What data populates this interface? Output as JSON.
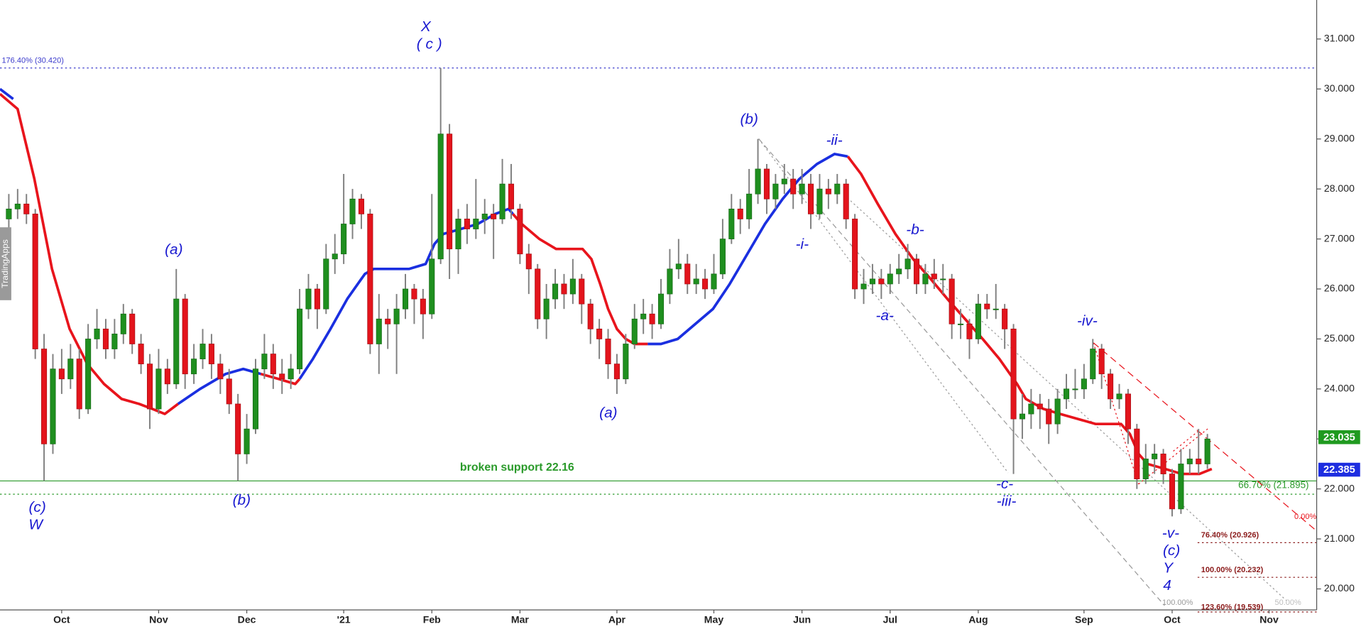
{
  "chart_data": {
    "type": "candlestick",
    "watermark": "TradingApps",
    "up_color": "#1f8f1f",
    "down_color": "#e3141c",
    "wick_color": "#808080",
    "candles": [
      [
        27.4,
        27.9,
        27.2,
        27.6
      ],
      [
        27.6,
        28.0,
        27.4,
        27.7
      ],
      [
        27.7,
        27.9,
        27.3,
        27.5
      ],
      [
        27.5,
        27.6,
        24.6,
        24.8
      ],
      [
        24.8,
        25.1,
        22.16,
        22.9
      ],
      [
        22.9,
        24.7,
        22.7,
        24.4
      ],
      [
        24.4,
        24.8,
        23.9,
        24.2
      ],
      [
        24.2,
        24.9,
        24.0,
        24.6
      ],
      [
        24.6,
        24.8,
        23.4,
        23.6
      ],
      [
        23.6,
        25.3,
        23.5,
        25.0
      ],
      [
        25.0,
        25.6,
        24.8,
        25.2
      ],
      [
        25.2,
        25.4,
        24.6,
        24.8
      ],
      [
        24.8,
        25.4,
        24.6,
        25.1
      ],
      [
        25.1,
        25.7,
        24.9,
        25.5
      ],
      [
        25.5,
        25.6,
        24.7,
        24.9
      ],
      [
        24.9,
        25.1,
        24.3,
        24.5
      ],
      [
        24.5,
        24.7,
        23.2,
        23.6
      ],
      [
        23.6,
        24.8,
        23.5,
        24.4
      ],
      [
        24.4,
        24.6,
        23.9,
        24.1
      ],
      [
        24.1,
        26.4,
        24.0,
        25.8
      ],
      [
        25.8,
        25.9,
        24.0,
        24.3
      ],
      [
        24.3,
        24.9,
        24.1,
        24.6
      ],
      [
        24.6,
        25.2,
        24.4,
        24.9
      ],
      [
        24.9,
        25.1,
        24.2,
        24.5
      ],
      [
        24.5,
        24.7,
        23.9,
        24.2
      ],
      [
        24.2,
        24.4,
        23.5,
        23.7
      ],
      [
        23.7,
        23.9,
        22.16,
        22.7
      ],
      [
        22.7,
        23.5,
        22.5,
        23.2
      ],
      [
        23.2,
        24.6,
        23.1,
        24.4
      ],
      [
        24.4,
        25.1,
        24.2,
        24.7
      ],
      [
        24.7,
        24.9,
        24.0,
        24.3
      ],
      [
        24.3,
        24.6,
        23.9,
        24.2
      ],
      [
        24.2,
        24.7,
        24.0,
        24.4
      ],
      [
        24.4,
        26.0,
        24.3,
        25.6
      ],
      [
        25.6,
        26.3,
        25.4,
        26.0
      ],
      [
        26.0,
        26.1,
        25.2,
        25.6
      ],
      [
        25.6,
        26.9,
        25.5,
        26.6
      ],
      [
        26.6,
        27.1,
        26.3,
        26.7
      ],
      [
        26.7,
        28.3,
        26.5,
        27.3
      ],
      [
        27.3,
        28.0,
        27.0,
        27.8
      ],
      [
        27.8,
        27.9,
        27.2,
        27.5
      ],
      [
        27.5,
        27.6,
        24.7,
        24.9
      ],
      [
        24.9,
        25.9,
        24.3,
        25.4
      ],
      [
        25.4,
        25.6,
        24.8,
        25.3
      ],
      [
        25.3,
        25.9,
        24.3,
        25.6
      ],
      [
        25.6,
        26.3,
        25.4,
        26.0
      ],
      [
        26.0,
        26.1,
        25.3,
        25.8
      ],
      [
        25.8,
        26.0,
        25.0,
        25.5
      ],
      [
        25.5,
        27.9,
        25.4,
        26.6
      ],
      [
        26.6,
        30.42,
        26.5,
        29.1
      ],
      [
        29.1,
        29.3,
        26.2,
        26.8
      ],
      [
        26.8,
        27.6,
        26.3,
        27.4
      ],
      [
        27.4,
        27.7,
        26.9,
        27.2
      ],
      [
        27.2,
        28.2,
        27.0,
        27.4
      ],
      [
        27.4,
        27.8,
        27.1,
        27.5
      ],
      [
        27.5,
        27.7,
        26.6,
        27.4
      ],
      [
        27.4,
        28.6,
        27.3,
        28.1
      ],
      [
        28.1,
        28.5,
        27.4,
        27.6
      ],
      [
        27.6,
        27.7,
        26.5,
        26.7
      ],
      [
        26.7,
        26.9,
        25.9,
        26.4
      ],
      [
        26.4,
        26.5,
        25.2,
        25.4
      ],
      [
        25.4,
        26.1,
        25.0,
        25.8
      ],
      [
        25.8,
        26.4,
        25.6,
        26.1
      ],
      [
        26.1,
        26.3,
        25.6,
        25.9
      ],
      [
        25.9,
        26.6,
        25.7,
        26.2
      ],
      [
        26.2,
        26.3,
        25.3,
        25.7
      ],
      [
        25.7,
        25.8,
        24.9,
        25.2
      ],
      [
        25.2,
        25.4,
        24.6,
        25.0
      ],
      [
        25.0,
        25.2,
        24.2,
        24.5
      ],
      [
        24.5,
        24.7,
        23.9,
        24.2
      ],
      [
        24.2,
        25.1,
        24.1,
        24.9
      ],
      [
        24.9,
        25.7,
        24.8,
        25.4
      ],
      [
        25.4,
        25.8,
        25.1,
        25.5
      ],
      [
        25.5,
        25.7,
        25.0,
        25.3
      ],
      [
        25.3,
        26.2,
        25.2,
        25.9
      ],
      [
        25.9,
        26.8,
        25.7,
        26.4
      ],
      [
        26.4,
        27.0,
        26.2,
        26.5
      ],
      [
        26.5,
        26.7,
        25.9,
        26.1
      ],
      [
        26.1,
        26.5,
        25.9,
        26.2
      ],
      [
        26.2,
        26.4,
        25.8,
        26.0
      ],
      [
        26.0,
        26.7,
        25.9,
        26.3
      ],
      [
        26.3,
        27.4,
        26.2,
        27.0
      ],
      [
        27.0,
        27.9,
        26.9,
        27.6
      ],
      [
        27.6,
        27.8,
        27.1,
        27.4
      ],
      [
        27.4,
        28.4,
        27.2,
        27.9
      ],
      [
        27.9,
        29.0,
        27.7,
        28.4
      ],
      [
        28.4,
        28.5,
        27.5,
        27.8
      ],
      [
        27.8,
        28.3,
        27.6,
        28.1
      ],
      [
        28.1,
        28.5,
        27.9,
        28.2
      ],
      [
        28.2,
        28.4,
        27.6,
        27.9
      ],
      [
        27.9,
        28.4,
        27.7,
        28.1
      ],
      [
        28.1,
        28.3,
        27.2,
        27.5
      ],
      [
        27.5,
        28.3,
        27.4,
        28.0
      ],
      [
        28.0,
        28.2,
        27.6,
        27.9
      ],
      [
        27.9,
        28.3,
        27.7,
        28.1
      ],
      [
        28.1,
        28.2,
        27.2,
        27.4
      ],
      [
        27.4,
        27.5,
        25.8,
        26.0
      ],
      [
        26.0,
        26.4,
        25.7,
        26.1
      ],
      [
        26.1,
        26.5,
        25.9,
        26.2
      ],
      [
        26.2,
        26.4,
        25.8,
        26.1
      ],
      [
        26.1,
        26.5,
        25.9,
        26.3
      ],
      [
        26.3,
        26.7,
        26.1,
        26.4
      ],
      [
        26.4,
        26.9,
        26.2,
        26.6
      ],
      [
        26.6,
        26.7,
        25.9,
        26.1
      ],
      [
        26.1,
        26.5,
        25.9,
        26.3
      ],
      [
        26.3,
        26.6,
        26.0,
        26.2
      ],
      [
        26.2,
        26.5,
        25.9,
        26.2
      ],
      [
        26.2,
        26.3,
        25.0,
        25.3
      ],
      [
        25.3,
        25.6,
        25.0,
        25.3
      ],
      [
        25.3,
        25.4,
        24.6,
        25.0
      ],
      [
        25.0,
        25.9,
        24.9,
        25.7
      ],
      [
        25.7,
        25.9,
        25.4,
        25.6
      ],
      [
        25.6,
        26.1,
        25.4,
        25.6
      ],
      [
        25.6,
        25.7,
        24.8,
        25.2
      ],
      [
        25.2,
        25.3,
        22.3,
        23.4
      ],
      [
        23.4,
        23.9,
        23.0,
        23.5
      ],
      [
        23.5,
        24.0,
        23.2,
        23.7
      ],
      [
        23.7,
        23.9,
        23.2,
        23.6
      ],
      [
        23.6,
        23.8,
        22.9,
        23.3
      ],
      [
        23.3,
        24.0,
        23.1,
        23.8
      ],
      [
        23.8,
        24.3,
        23.6,
        24.0
      ],
      [
        24.0,
        24.4,
        23.8,
        24.0
      ],
      [
        24.0,
        24.5,
        23.8,
        24.2
      ],
      [
        24.2,
        25.0,
        24.1,
        24.8
      ],
      [
        24.8,
        24.9,
        24.0,
        24.3
      ],
      [
        24.3,
        24.4,
        23.6,
        23.8
      ],
      [
        23.8,
        24.1,
        23.6,
        23.9
      ],
      [
        23.9,
        24.0,
        22.9,
        23.2
      ],
      [
        23.2,
        23.3,
        22.0,
        22.2
      ],
      [
        22.2,
        22.9,
        22.1,
        22.6
      ],
      [
        22.6,
        22.9,
        22.3,
        22.7
      ],
      [
        22.7,
        22.8,
        22.1,
        22.3
      ],
      [
        22.3,
        22.4,
        21.45,
        21.6
      ],
      [
        21.6,
        22.8,
        21.5,
        22.5
      ],
      [
        22.5,
        22.8,
        22.3,
        22.6
      ],
      [
        22.6,
        23.2,
        22.3,
        22.5
      ],
      [
        22.5,
        23.1,
        22.4,
        23.0
      ]
    ],
    "ma_segments": [
      {
        "color": "#1a2fe0",
        "x": [
          -1,
          0.5
        ],
        "values": [
          30.0,
          29.8
        ]
      },
      {
        "color": "#e8141c",
        "x": [
          -1,
          1.0,
          2.9,
          4.9,
          6.9,
          8.9,
          10.8,
          12.8,
          14.8,
          16.3,
          17.7,
          19.2
        ],
        "values": [
          29.9,
          29.6,
          28.2,
          26.4,
          25.2,
          24.5,
          24.1,
          23.8,
          23.7,
          23.6,
          23.5,
          23.7
        ]
      },
      {
        "color": "#1a2fe0",
        "x": [
          19.2,
          21.7,
          24.6,
          26.6,
          28.6
        ],
        "values": [
          23.7,
          24.0,
          24.3,
          24.4,
          24.3
        ]
      },
      {
        "color": "#e8141c",
        "x": [
          28.6,
          30.6,
          32.5,
          33.0
        ],
        "values": [
          24.3,
          24.2,
          24.1,
          24.2
        ]
      },
      {
        "color": "#1a2fe0",
        "x": [
          33.0,
          34.5,
          36.5,
          38.4,
          40.4,
          41.4,
          43.4,
          45.4,
          47.3,
          48.3,
          49.3,
          51.3,
          53.2,
          55.2,
          56.7,
          57.2
        ],
        "values": [
          24.2,
          24.6,
          25.2,
          25.8,
          26.3,
          26.4,
          26.4,
          26.4,
          26.5,
          26.9,
          27.1,
          27.2,
          27.3,
          27.5,
          27.6,
          27.5
        ]
      },
      {
        "color": "#e8141c",
        "x": [
          57.2,
          58.2,
          60.2,
          62.1,
          64.1,
          65.1,
          66.1,
          67.1,
          68.0,
          69.0,
          70.0,
          71.0,
          72.5
        ],
        "values": [
          27.5,
          27.3,
          27.0,
          26.8,
          26.8,
          26.8,
          26.6,
          26.1,
          25.6,
          25.2,
          25.0,
          24.9,
          24.9
        ]
      },
      {
        "color": "#1a2fe0",
        "x": [
          72.5,
          74.0,
          75.9,
          77.9,
          79.9,
          81.8,
          83.8,
          85.8,
          87.8,
          89.7,
          91.7,
          93.7,
          95.2
        ],
        "values": [
          24.9,
          24.9,
          25.0,
          25.3,
          25.6,
          26.1,
          26.7,
          27.3,
          27.8,
          28.2,
          28.5,
          28.7,
          28.65
        ]
      },
      {
        "color": "#e8141c",
        "x": [
          95.2,
          96.7,
          98.6,
          100.6,
          102.6,
          104.6,
          106.5,
          108.5,
          110.5,
          112.4,
          114.4,
          115.4,
          117.4,
          119.3,
          121.3,
          123.3,
          125.2,
          126.2,
          127.2,
          128.2,
          129.2,
          131.2,
          133.1,
          135.1,
          136.5
        ],
        "values": [
          28.65,
          28.3,
          27.7,
          27.1,
          26.6,
          26.2,
          25.8,
          25.4,
          25.0,
          24.6,
          24.1,
          23.8,
          23.6,
          23.5,
          23.4,
          23.3,
          23.3,
          23.3,
          23.1,
          22.7,
          22.5,
          22.4,
          22.3,
          22.3,
          22.4
        ]
      }
    ],
    "xlim": [
      -1,
      148.4
    ],
    "xticks": [
      {
        "value": 6,
        "label": "Oct"
      },
      {
        "value": 17,
        "label": "Nov"
      },
      {
        "value": 27,
        "label": "Dec"
      },
      {
        "value": 38,
        "label": "'21"
      },
      {
        "value": 48,
        "label": "Feb"
      },
      {
        "value": 58,
        "label": "Mar"
      },
      {
        "value": 69,
        "label": "Apr"
      },
      {
        "value": 80,
        "label": "May"
      },
      {
        "value": 90,
        "label": "Jun"
      },
      {
        "value": 100,
        "label": "Jul"
      },
      {
        "value": 110,
        "label": "Aug"
      },
      {
        "value": 122,
        "label": "Sep"
      },
      {
        "value": 132,
        "label": "Oct"
      },
      {
        "value": 143,
        "label": "Nov"
      }
    ],
    "ylim": [
      19.58,
      31.78
    ],
    "yticks": [
      {
        "value": 20,
        "label": "20.000"
      },
      {
        "value": 21,
        "label": "21.000"
      },
      {
        "value": 22,
        "label": "22.000"
      },
      {
        "value": 23,
        "label": "23.000"
      },
      {
        "value": 24,
        "label": "24.000"
      },
      {
        "value": 25,
        "label": "25.000"
      },
      {
        "value": 26,
        "label": "26.000"
      },
      {
        "value": 27,
        "label": "27.000"
      },
      {
        "value": 28,
        "label": "28.000"
      },
      {
        "value": 29,
        "label": "29.000"
      },
      {
        "value": 30,
        "label": "30.000"
      },
      {
        "value": 31,
        "label": "31.000"
      }
    ],
    "levels": [
      {
        "value": 30.42,
        "label": "176.40% (30.420)",
        "color": "#3a3acc",
        "line_style": "dotted"
      },
      {
        "value": 22.16,
        "label": "broken support 22.16",
        "color": "#2a9a2a",
        "line_style": "solid"
      },
      {
        "value": 21.895,
        "label": "66.70% (21.895)",
        "color": "#2a9a2a",
        "line_style": "dotted"
      },
      {
        "value": 20.926,
        "label": "76.40% (20.926)",
        "color": "#8b1a1a",
        "line_style": "dotted"
      },
      {
        "value": 20.232,
        "label": "100.00% (20.232)",
        "color": "#8b1a1a",
        "line_style": "dotted"
      },
      {
        "value": 19.539,
        "label": "123.60% (19.539)",
        "color": "#8b1a1a",
        "line_style": "dotted"
      }
    ],
    "price_tags": [
      {
        "value": 23.035,
        "label": "23.035",
        "color": "#1f9a1f"
      },
      {
        "value": 22.385,
        "label": "22.385",
        "color": "#1e2ee0"
      }
    ],
    "annotations": [
      "0.00%",
      "100.00%",
      "50.00%"
    ],
    "wave_labels": [
      "X",
      "( c )",
      "(a)",
      "(c)",
      "W",
      "(b)",
      "(a)",
      "(b)",
      "-ii-",
      "-i-",
      "-b-",
      "-a-",
      "-c-",
      "-iii-",
      "-iv-",
      "-v-",
      "(c)",
      "Y",
      "4"
    ]
  }
}
